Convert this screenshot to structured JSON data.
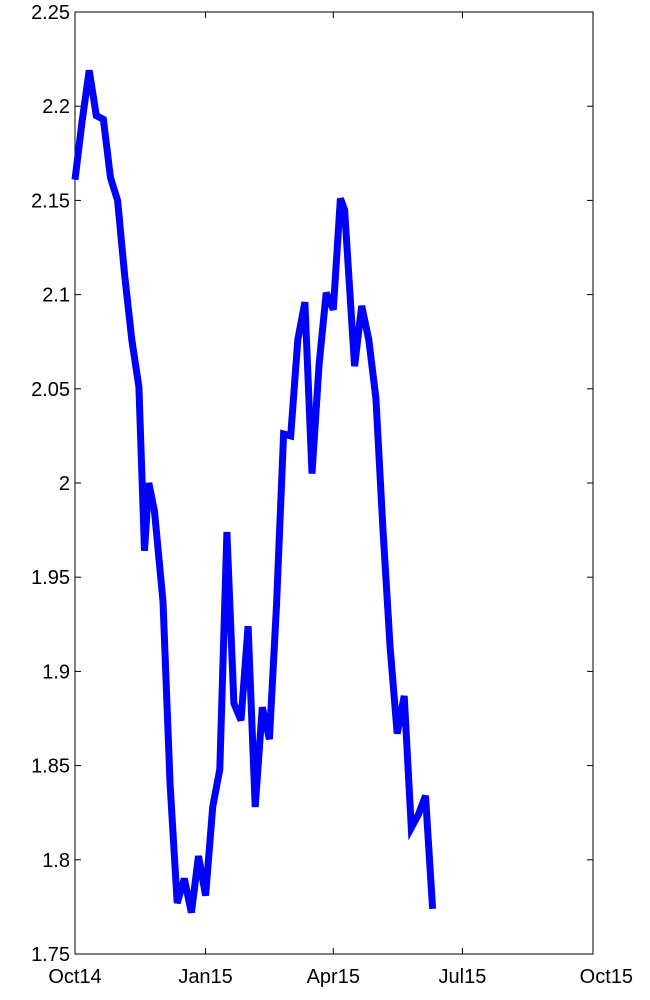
{
  "chart_data": {
    "type": "line",
    "title": "",
    "xlabel": "",
    "ylabel": "",
    "grid": false,
    "legend": "none",
    "xlim": [
      "2014-10-01",
      "2015-10-01"
    ],
    "ylim": [
      1.75,
      2.25
    ],
    "x_ticks": [
      {
        "date": "2014-10-01",
        "label": "Oct14"
      },
      {
        "date": "2015-01-01",
        "label": "Jan15"
      },
      {
        "date": "2015-04-01",
        "label": "Apr15"
      },
      {
        "date": "2015-07-01",
        "label": "Jul15"
      },
      {
        "date": "2015-10-01",
        "label": "Oct15"
      }
    ],
    "y_ticks": [
      {
        "value": 1.75,
        "label": "1.75"
      },
      {
        "value": 1.8,
        "label": "1.8"
      },
      {
        "value": 1.85,
        "label": "1.85"
      },
      {
        "value": 1.9,
        "label": "1.9"
      },
      {
        "value": 1.95,
        "label": "1.95"
      },
      {
        "value": 2.0,
        "label": "2"
      },
      {
        "value": 2.05,
        "label": "2.05"
      },
      {
        "value": 2.1,
        "label": "2.1"
      },
      {
        "value": 2.15,
        "label": "2.15"
      },
      {
        "value": 2.2,
        "label": "2.2"
      },
      {
        "value": 2.25,
        "label": "2.25"
      }
    ],
    "series": [
      {
        "color": "#0000ff",
        "points": [
          [
            "2014-10-01",
            2.161
          ],
          [
            "2014-10-06",
            2.192
          ],
          [
            "2014-10-11",
            2.219
          ],
          [
            "2014-10-16",
            2.195
          ],
          [
            "2014-10-21",
            2.193
          ],
          [
            "2014-10-26",
            2.162
          ],
          [
            "2014-10-31",
            2.15
          ],
          [
            "2014-11-05",
            2.11
          ],
          [
            "2014-11-10",
            2.076
          ],
          [
            "2014-11-15",
            2.051
          ],
          [
            "2014-11-19",
            1.964
          ],
          [
            "2014-11-22",
            2.0
          ],
          [
            "2014-11-26",
            1.985
          ],
          [
            "2014-12-02",
            1.937
          ],
          [
            "2014-12-07",
            1.84
          ],
          [
            "2014-12-12",
            1.777
          ],
          [
            "2014-12-17",
            1.79
          ],
          [
            "2014-12-22",
            1.772
          ],
          [
            "2014-12-27",
            1.802
          ],
          [
            "2015-01-01",
            1.781
          ],
          [
            "2015-01-06",
            1.828
          ],
          [
            "2015-01-11",
            1.848
          ],
          [
            "2015-01-16",
            1.974
          ],
          [
            "2015-01-21",
            1.883
          ],
          [
            "2015-01-26",
            1.874
          ],
          [
            "2015-01-31",
            1.924
          ],
          [
            "2015-02-05",
            1.828
          ],
          [
            "2015-02-10",
            1.881
          ],
          [
            "2015-02-15",
            1.864
          ],
          [
            "2015-02-20",
            1.935
          ],
          [
            "2015-02-25",
            2.026
          ],
          [
            "2015-03-02",
            2.025
          ],
          [
            "2015-03-07",
            2.076
          ],
          [
            "2015-03-12",
            2.096
          ],
          [
            "2015-03-17",
            2.005
          ],
          [
            "2015-03-22",
            2.063
          ],
          [
            "2015-03-27",
            2.101
          ],
          [
            "2015-04-01",
            2.092
          ],
          [
            "2015-04-06",
            2.151
          ],
          [
            "2015-04-09",
            2.145
          ],
          [
            "2015-04-16",
            2.062
          ],
          [
            "2015-04-21",
            2.094
          ],
          [
            "2015-04-26",
            2.076
          ],
          [
            "2015-05-01",
            2.045
          ],
          [
            "2015-05-06",
            1.975
          ],
          [
            "2015-05-11",
            1.913
          ],
          [
            "2015-05-16",
            1.867
          ],
          [
            "2015-05-21",
            1.887
          ],
          [
            "2015-05-26",
            1.817
          ],
          [
            "2015-05-31",
            1.824
          ],
          [
            "2015-06-05",
            1.834
          ],
          [
            "2015-06-10",
            1.774
          ]
        ]
      }
    ]
  }
}
